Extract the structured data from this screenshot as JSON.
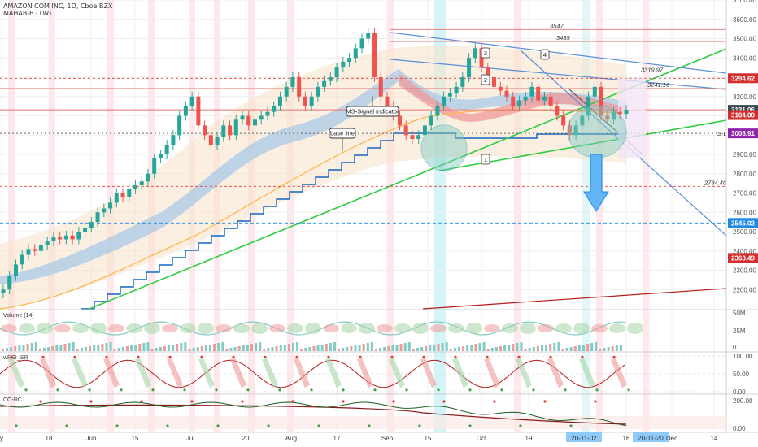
{
  "header": {
    "symbol_line": "AMAZON COM INC, 1D, Cboe BZX",
    "study_line": "MAHAB-B (1W)"
  },
  "colors": {
    "up_candle": "#26a69a",
    "down_candle": "#ef5350",
    "green_line": "#2ecc40",
    "blue_line": "#2962ff",
    "price_tag_red": "#d32f2f",
    "price_tag_purple": "#8e24aa",
    "price_tag_blue": "#1e88e5",
    "price_tag_dark": "#37474f"
  },
  "chart_data": [
    {
      "type": "line",
      "panel": "price",
      "ylim": [
        2100,
        3700
      ],
      "y_ticks": [
        2200,
        2300,
        2400,
        2500,
        2600,
        2700,
        2800,
        2900,
        3000,
        3100,
        3200,
        3300,
        3400,
        3500,
        3600,
        3700
      ],
      "x_ticks": [
        "y",
        "18",
        "Jun",
        "15",
        "Jul",
        "20",
        "Aug",
        "17",
        "Sep",
        "15",
        "Oct",
        "19",
        "20-11-02",
        "16",
        "20-11-20",
        "Dec",
        "14"
      ],
      "series": [
        {
          "values": [
            2200,
            2270,
            2330,
            2380,
            2410,
            2400,
            2430,
            2450,
            2470,
            2460,
            2480,
            2460,
            2500,
            2520,
            2550,
            2600,
            2620,
            2650,
            2700,
            2680,
            2720,
            2740,
            2760,
            2800,
            2880,
            2900,
            2950,
            3000,
            3100,
            3150,
            3200,
            3050,
            3000,
            2950,
            2990,
            3050,
            3000,
            3080,
            3100,
            3050,
            3080,
            3100,
            3120,
            3150,
            3200,
            3250,
            3300,
            3200,
            3150,
            3200,
            3250,
            3280,
            3300,
            3350,
            3380,
            3400,
            3450,
            3500,
            3530,
            3300,
            3200,
            3150,
            3100,
            3050,
            3000,
            2980,
            3000,
            3050,
            3100,
            3150,
            3200,
            3220,
            3250,
            3300,
            3400,
            3450,
            3350,
            3300,
            3250,
            3230,
            3200,
            3150,
            3180,
            3200,
            3250,
            3180,
            3200,
            3150,
            3100,
            3050,
            3000,
            3050,
            3100,
            3200,
            3250,
            3100,
            3080,
            3120,
            3110,
            3131
          ]
        }
      ],
      "price_tags": [
        "3294.62",
        "3131.06",
        "3104.00",
        "3008.91",
        "2545.02",
        "2363.49"
      ],
      "level_labels": [
        "3547",
        "3485",
        "3319.97",
        "3241.16",
        "2734.40"
      ],
      "annotations": [
        "MS-Signal indicator",
        "base line",
        "S-L",
        "1",
        "2",
        "3",
        "4",
        "2"
      ]
    },
    {
      "type": "area",
      "panel": "volume",
      "title": "Volume (14)",
      "y_ticks": [
        "50M",
        "25M",
        "0"
      ]
    },
    {
      "type": "line",
      "panel": "wrsi",
      "title": "wRSI_SR",
      "ylim": [
        0,
        100
      ],
      "y_ticks": [
        "100.00",
        "50.00",
        "0.00"
      ]
    },
    {
      "type": "line",
      "panel": "coppock",
      "title": "CO-RC",
      "y_ticks": [
        "200.00",
        "0.00"
      ]
    }
  ]
}
